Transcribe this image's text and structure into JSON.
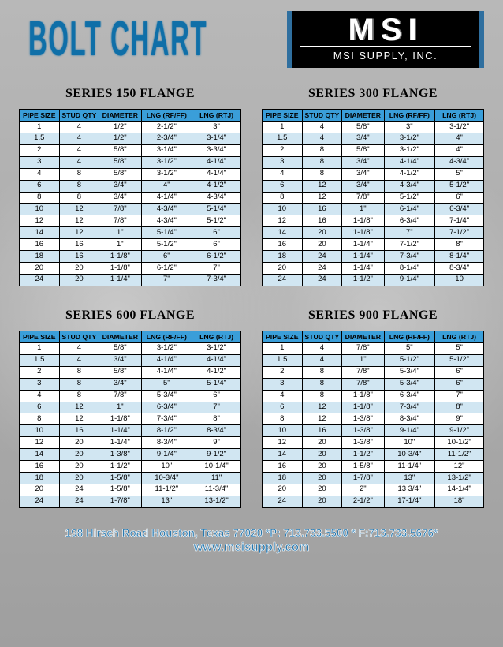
{
  "title": "BOLT CHART",
  "logo": {
    "main": "MSI",
    "sub": "MSI SUPPLY, INC."
  },
  "columns": [
    "PIPE SIZE",
    "STUD QTY",
    "DIAMETER",
    "LNG (RF/FF)",
    "LNG (RTJ)"
  ],
  "colors": {
    "header_bg": "#3a9ed9",
    "row_alt_bg": "#d1e6f2",
    "title_color": "#0f6fa8",
    "page_bg": "#b8b8b8",
    "footer_color": "#2a7ab0"
  },
  "tables": [
    {
      "title": "SERIES 150 FLANGE",
      "rows": [
        [
          "1",
          "4",
          "1/2\"",
          "2-1/2\"",
          "3\""
        ],
        [
          "1.5",
          "4",
          "1/2\"",
          "2-3/4\"",
          "3-1/4\""
        ],
        [
          "2",
          "4",
          "5/8\"",
          "3-1/4\"",
          "3-3/4\""
        ],
        [
          "3",
          "4",
          "5/8\"",
          "3-1/2\"",
          "4-1/4\""
        ],
        [
          "4",
          "8",
          "5/8\"",
          "3-1/2\"",
          "4-1/4\""
        ],
        [
          "6",
          "8",
          "3/4\"",
          "4\"",
          "4-1/2\""
        ],
        [
          "8",
          "8",
          "3/4\"",
          "4-1/4\"",
          "4-3/4\""
        ],
        [
          "10",
          "12",
          "7/8\"",
          "4-3/4\"",
          "5-1/4\""
        ],
        [
          "12",
          "12",
          "7/8\"",
          "4-3/4\"",
          "5-1/2\""
        ],
        [
          "14",
          "12",
          "1\"",
          "5-1/4\"",
          "6\""
        ],
        [
          "16",
          "16",
          "1\"",
          "5-1/2\"",
          "6\""
        ],
        [
          "18",
          "16",
          "1-1/8\"",
          "6\"",
          "6-1/2\""
        ],
        [
          "20",
          "20",
          "1-1/8\"",
          "6-1/2\"",
          "7\""
        ],
        [
          "24",
          "20",
          "1-1/4\"",
          "7\"",
          "7-3/4\""
        ]
      ]
    },
    {
      "title": "SERIES 300 FLANGE",
      "rows": [
        [
          "1",
          "4",
          "5/8\"",
          "3\"",
          "3-1/2\""
        ],
        [
          "1.5",
          "4",
          "3/4\"",
          "3-1/2\"",
          "4\""
        ],
        [
          "2",
          "8",
          "5/8\"",
          "3-1/2\"",
          "4\""
        ],
        [
          "3",
          "8",
          "3/4\"",
          "4-1/4\"",
          "4-3/4\""
        ],
        [
          "4",
          "8",
          "3/4\"",
          "4-1/2\"",
          "5\""
        ],
        [
          "6",
          "12",
          "3/4\"",
          "4-3/4\"",
          "5-1/2\""
        ],
        [
          "8",
          "12",
          "7/8\"",
          "5-1/2\"",
          "6\""
        ],
        [
          "10",
          "16",
          "1\"",
          "6-1/4\"",
          "6-3/4\""
        ],
        [
          "12",
          "16",
          "1-1/8\"",
          "6-3/4\"",
          "7-1/4\""
        ],
        [
          "14",
          "20",
          "1-1/8\"",
          "7\"",
          "7-1/2\""
        ],
        [
          "16",
          "20",
          "1-1/4\"",
          "7-1/2\"",
          "8\""
        ],
        [
          "18",
          "24",
          "1-1/4\"",
          "7-3/4\"",
          "8-1/4\""
        ],
        [
          "20",
          "24",
          "1-1/4\"",
          "8-1/4\"",
          "8-3/4\""
        ],
        [
          "24",
          "24",
          "1-1/2\"",
          "9-1/4\"",
          "10"
        ]
      ]
    },
    {
      "title": "SERIES 600 FLANGE",
      "rows": [
        [
          "1",
          "4",
          "5/8\"",
          "3-1/2\"",
          "3-1/2\""
        ],
        [
          "1.5",
          "4",
          "3/4\"",
          "4-1/4\"",
          "4-1/4\""
        ],
        [
          "2",
          "8",
          "5/8\"",
          "4-1/4\"",
          "4-1/2\""
        ],
        [
          "3",
          "8",
          "3/4\"",
          "5\"",
          "5-1/4\""
        ],
        [
          "4",
          "8",
          "7/8\"",
          "5-3/4\"",
          "6\""
        ],
        [
          "6",
          "12",
          "1\"",
          "6-3/4\"",
          "7\""
        ],
        [
          "8",
          "12",
          "1-1/8\"",
          "7-3/4\"",
          "8\""
        ],
        [
          "10",
          "16",
          "1-1/4\"",
          "8-1/2\"",
          "8-3/4\""
        ],
        [
          "12",
          "20",
          "1-1/4\"",
          "8-3/4\"",
          "9\""
        ],
        [
          "14",
          "20",
          "1-3/8\"",
          "9-1/4\"",
          "9-1/2\""
        ],
        [
          "16",
          "20",
          "1-1/2\"",
          "10\"",
          "10-1/4\""
        ],
        [
          "18",
          "20",
          "1-5/8\"",
          "10-3/4\"",
          "11\""
        ],
        [
          "20",
          "24",
          "1-5/8\"",
          "11-1/2\"",
          "11-3/4\""
        ],
        [
          "24",
          "24",
          "1-7/8\"",
          "13\"",
          "13-1/2\""
        ]
      ]
    },
    {
      "title": "SERIES 900 FLANGE",
      "rows": [
        [
          "1",
          "4",
          "7/8\"",
          "5\"",
          "5\""
        ],
        [
          "1.5",
          "4",
          "1\"",
          "5-1/2\"",
          "5-1/2\""
        ],
        [
          "2",
          "8",
          "7/8\"",
          "5-3/4\"",
          "6\""
        ],
        [
          "3",
          "8",
          "7/8\"",
          "5-3/4\"",
          "6\""
        ],
        [
          "4",
          "8",
          "1-1/8\"",
          "6-3/4\"",
          "7\""
        ],
        [
          "6",
          "12",
          "1-1/8\"",
          "7-3/4\"",
          "8\""
        ],
        [
          "8",
          "12",
          "1-3/8\"",
          "8-3/4\"",
          "9\""
        ],
        [
          "10",
          "16",
          "1-3/8\"",
          "9-1/4\"",
          "9-1/2\""
        ],
        [
          "12",
          "20",
          "1-3/8\"",
          "10\"",
          "10-1/2\""
        ],
        [
          "14",
          "20",
          "1-1/2\"",
          "10-3/4\"",
          "11-1/2\""
        ],
        [
          "16",
          "20",
          "1-5/8\"",
          "11-1/4\"",
          "12\""
        ],
        [
          "18",
          "20",
          "1-7/8\"",
          "13\"",
          "13-1/2\""
        ],
        [
          "20",
          "20",
          "2\"",
          "13 3/4\"",
          "14-1/4\""
        ],
        [
          "24",
          "20",
          "2-1/2\"",
          "17-1/4\"",
          "18\""
        ]
      ]
    }
  ],
  "footer": {
    "line1": "198 Hirsch Road Houston, Texas 77020 *P: 713.733.5500 * F:713.733.5676*",
    "line2": "www.msisupply.com"
  }
}
